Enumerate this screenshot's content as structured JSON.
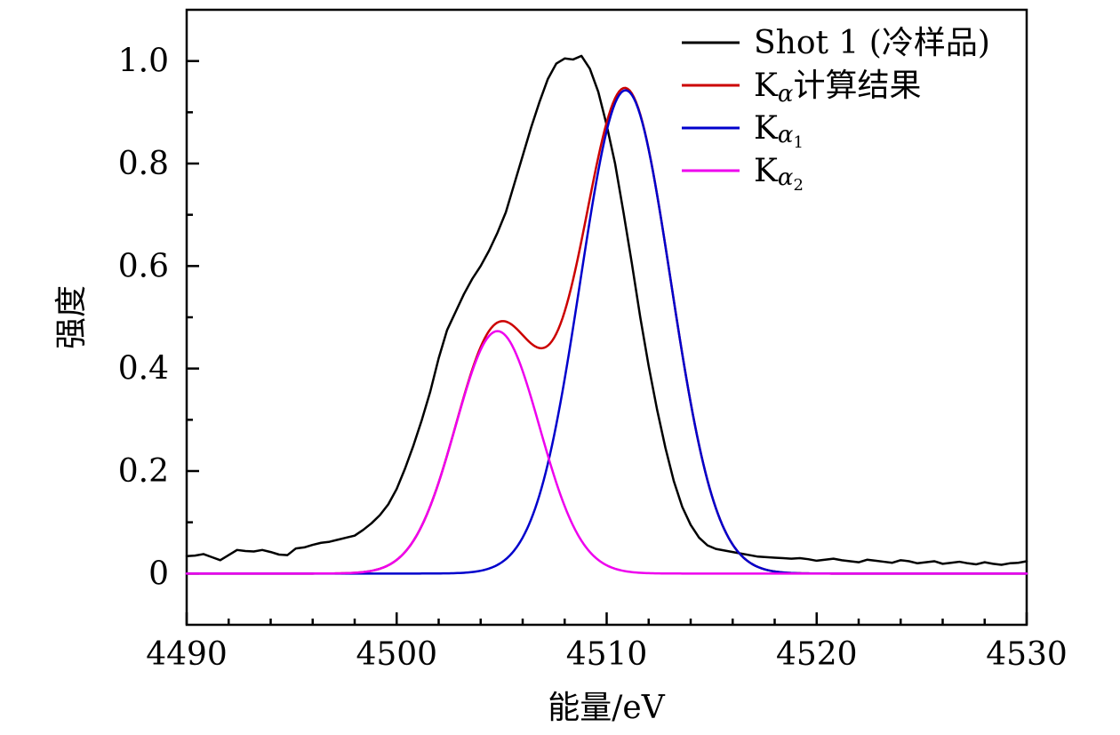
{
  "chart_data": {
    "type": "line",
    "xlabel": "能量/eV",
    "ylabel": "强度",
    "xlim": [
      4490,
      4530
    ],
    "ylim": [
      -0.1,
      1.1
    ],
    "x_ticks": [
      4490,
      4500,
      4510,
      4520,
      4530
    ],
    "x_tick_labels": [
      "4490",
      "4500",
      "4510",
      "4520",
      "4530"
    ],
    "y_ticks": [
      0,
      0.2,
      0.4,
      0.6,
      0.8,
      1.0
    ],
    "y_tick_labels": [
      "0",
      "0.2",
      "0.4",
      "0.6",
      "0.8",
      "1.0"
    ],
    "grid": false,
    "legend_position": "top-right",
    "series": [
      {
        "name": "Shot 1 (冷样品)",
        "legend_main": "Shot 1 (冷样品)",
        "legend_sub": "",
        "legend_tail": "",
        "color": "#000000",
        "x": [
          4490.0,
          4490.4,
          4490.8,
          4491.2,
          4491.6,
          4492.0,
          4492.4,
          4492.8,
          4493.2,
          4493.6,
          4494.0,
          4494.4,
          4494.8,
          4495.2,
          4495.6,
          4496.0,
          4496.4,
          4496.8,
          4497.2,
          4497.6,
          4498.0,
          4498.4,
          4498.8,
          4499.2,
          4499.6,
          4500.0,
          4500.4,
          4500.8,
          4501.2,
          4501.6,
          4502.0,
          4502.4,
          4502.8,
          4503.2,
          4503.6,
          4504.0,
          4504.4,
          4504.8,
          4505.2,
          4505.6,
          4506.0,
          4506.4,
          4506.8,
          4507.2,
          4507.6,
          4508.0,
          4508.4,
          4508.8,
          4509.2,
          4509.6,
          4510.0,
          4510.4,
          4510.8,
          4511.2,
          4511.6,
          4512.0,
          4512.4,
          4512.8,
          4513.2,
          4513.6,
          4514.0,
          4514.4,
          4514.8,
          4515.2,
          4515.6,
          4516.0,
          4516.4,
          4516.8,
          4517.2,
          4517.6,
          4518.0,
          4518.4,
          4518.8,
          4519.2,
          4519.6,
          4520.0,
          4520.4,
          4520.8,
          4521.2,
          4521.6,
          4522.0,
          4522.4,
          4522.8,
          4523.2,
          4523.6,
          4524.0,
          4524.4,
          4524.8,
          4525.2,
          4525.6,
          4526.0,
          4526.4,
          4526.8,
          4527.2,
          4527.6,
          4528.0,
          4528.4,
          4528.8,
          4529.2,
          4529.6,
          4530.0
        ],
        "y": [
          0.034,
          0.035,
          0.038,
          0.032,
          0.026,
          0.036,
          0.046,
          0.044,
          0.043,
          0.046,
          0.042,
          0.037,
          0.036,
          0.049,
          0.051,
          0.056,
          0.06,
          0.062,
          0.066,
          0.07,
          0.074,
          0.085,
          0.098,
          0.114,
          0.135,
          0.165,
          0.205,
          0.25,
          0.3,
          0.355,
          0.42,
          0.475,
          0.51,
          0.545,
          0.575,
          0.6,
          0.63,
          0.665,
          0.705,
          0.76,
          0.815,
          0.87,
          0.92,
          0.965,
          0.995,
          1.005,
          1.003,
          1.01,
          0.985,
          0.94,
          0.875,
          0.8,
          0.705,
          0.605,
          0.5,
          0.405,
          0.32,
          0.245,
          0.18,
          0.13,
          0.095,
          0.07,
          0.055,
          0.048,
          0.045,
          0.042,
          0.039,
          0.036,
          0.033,
          0.032,
          0.031,
          0.03,
          0.029,
          0.03,
          0.028,
          0.025,
          0.027,
          0.029,
          0.026,
          0.024,
          0.022,
          0.027,
          0.025,
          0.023,
          0.021,
          0.026,
          0.024,
          0.02,
          0.022,
          0.024,
          0.019,
          0.021,
          0.023,
          0.02,
          0.018,
          0.022,
          0.019,
          0.017,
          0.02,
          0.021,
          0.024
        ]
      },
      {
        "name": "Kα计算结果",
        "legend_main": "K",
        "legend_sub": "α",
        "legend_tail": "计算结果",
        "color": "#cc0000",
        "peaks": [
          {
            "amplitude": 0.943,
            "center": 4510.9,
            "sigma": 2.15
          },
          {
            "amplitude": 0.473,
            "center": 4504.8,
            "sigma": 2.0
          }
        ]
      },
      {
        "name": "Kα1",
        "legend_main": "K",
        "legend_sub": "α",
        "legend_subsub": "1",
        "legend_tail": "",
        "color": "#0000cc",
        "peaks": [
          {
            "amplitude": 0.943,
            "center": 4510.9,
            "sigma": 2.15
          }
        ]
      },
      {
        "name": "Kα2",
        "legend_main": "K",
        "legend_sub": "α",
        "legend_subsub": "2",
        "legend_tail": "",
        "color": "#ee00ee",
        "peaks": [
          {
            "amplitude": 0.473,
            "center": 4504.8,
            "sigma": 2.0
          }
        ]
      }
    ]
  }
}
